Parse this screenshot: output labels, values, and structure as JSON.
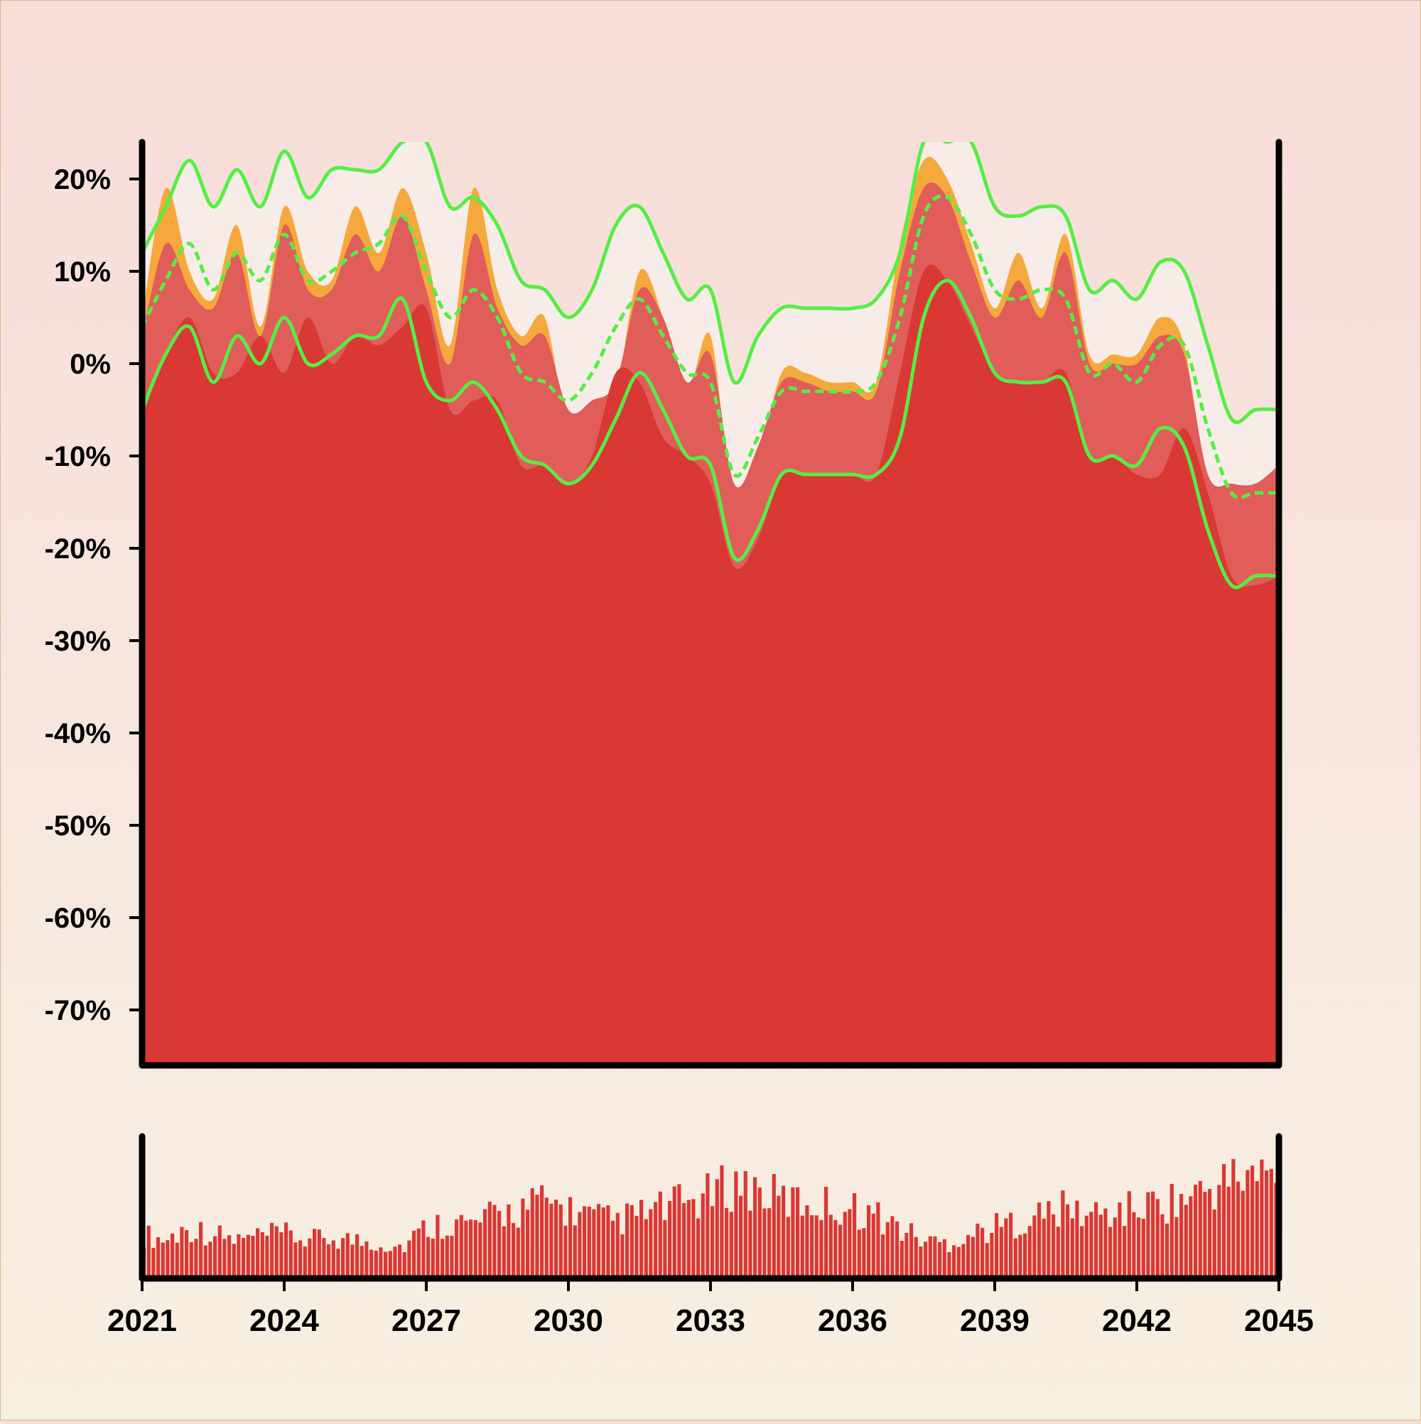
{
  "colors": {
    "background_top": "#f7dcd8",
    "background_bottom": "#f7efe0",
    "price_area": "#d93834",
    "mid_band": "#e05d5a",
    "high_area": "#f5a93c",
    "envelope_fill": "#f7ece8",
    "envelope_line": "#55ee44",
    "volume": "#d93834",
    "axis": "#000000"
  },
  "chart_data": [
    {
      "type": "area",
      "panel": "price",
      "y_unit": "%",
      "ylim": [
        -76,
        24
      ],
      "y_ticks": [
        20,
        10,
        0,
        -10,
        -20,
        -30,
        -40,
        -50,
        -60,
        -70
      ],
      "y_tick_labels": [
        "20%",
        "10%",
        "0%",
        "-10%",
        "-20%",
        "-30%",
        "-40%",
        "-50%",
        "-60%",
        "-70%"
      ],
      "grid": false,
      "legend": "none",
      "x": [
        2021.0,
        2021.5,
        2022.0,
        2022.5,
        2023.0,
        2023.5,
        2024.0,
        2024.5,
        2025.0,
        2025.5,
        2026.0,
        2026.5,
        2027.0,
        2027.5,
        2028.0,
        2028.5,
        2029.0,
        2029.5,
        2030.0,
        2030.5,
        2031.0,
        2031.5,
        2032.0,
        2032.5,
        2033.0,
        2033.5,
        2034.0,
        2034.5,
        2035.0,
        2035.5,
        2036.0,
        2036.5,
        2037.0,
        2037.5,
        2038.0,
        2038.5,
        2039.0,
        2039.5,
        2040.0,
        2040.5,
        2041.0,
        2041.5,
        2042.0,
        2042.5,
        2043.0,
        2043.5,
        2044.0,
        2044.5,
        2045.0
      ],
      "series": [
        {
          "role": "high",
          "values": [
            5,
            19,
            10,
            7,
            15,
            4,
            17,
            10,
            9,
            17,
            12,
            19,
            12,
            2,
            19,
            8,
            3,
            5,
            -7,
            -5,
            -3,
            10,
            5,
            -3,
            3,
            -16,
            -11,
            -1,
            -1,
            -2,
            -2,
            -2,
            13,
            22,
            20,
            13,
            6,
            12,
            6,
            14,
            1,
            1,
            1,
            5,
            2,
            -14,
            -15,
            -15,
            -12
          ]
        },
        {
          "role": "mid",
          "values": [
            3,
            13,
            8,
            6,
            12,
            3,
            15,
            8,
            8,
            14,
            10,
            16,
            8,
            0,
            14,
            6,
            2,
            3,
            -5,
            -4,
            -2,
            8,
            5,
            -2,
            1,
            -13,
            -9,
            -2,
            -2,
            -3,
            -3,
            -3,
            10,
            19,
            18,
            11,
            5,
            9,
            5,
            12,
            0,
            0,
            0,
            3,
            1,
            -12,
            -13,
            -13,
            -11
          ]
        },
        {
          "role": "close",
          "values": [
            -6,
            1,
            5,
            -1,
            -1,
            3,
            -1,
            5,
            0,
            3,
            2,
            4,
            6,
            -5,
            -4,
            -4,
            -11,
            -11,
            -13,
            -10,
            -1,
            -2,
            -8,
            -10,
            -13,
            -22,
            -19,
            -12,
            -12,
            -12,
            -12,
            -12,
            -1,
            10,
            9,
            4,
            -1,
            -2,
            -2,
            -1,
            -10,
            -10,
            -12,
            -12,
            -7,
            -14,
            -23,
            -24,
            -23
          ]
        },
        {
          "role": "envelope_upper",
          "values": [
            12,
            17,
            22,
            17,
            21,
            17,
            23,
            18,
            21,
            21,
            21,
            24,
            24,
            17,
            18,
            15,
            9,
            8,
            5,
            8,
            15,
            17,
            12,
            7,
            8,
            -2,
            3,
            6,
            6,
            6,
            6,
            7,
            12,
            24,
            24,
            24,
            17,
            16,
            17,
            16,
            8,
            9,
            7,
            11,
            10,
            2,
            -6,
            -5,
            -5
          ]
        },
        {
          "role": "envelope_middle",
          "values": [
            4,
            9,
            13,
            8,
            12,
            9,
            14,
            9,
            10,
            12,
            13,
            16,
            10,
            5,
            8,
            5,
            -1,
            -2,
            -4,
            -1,
            4,
            7,
            3,
            -1,
            -2,
            -12,
            -8,
            -3,
            -3,
            -3,
            -3,
            -2,
            5,
            16,
            18,
            14,
            8,
            7,
            8,
            7,
            -1,
            0,
            -2,
            2,
            2,
            -7,
            -14,
            -14,
            -14
          ]
        },
        {
          "role": "envelope_lower",
          "values": [
            -5,
            1,
            4,
            -2,
            3,
            0,
            5,
            0,
            1,
            3,
            3,
            7,
            -2,
            -4,
            -2,
            -5,
            -10,
            -11,
            -13,
            -11,
            -6,
            -1,
            -5,
            -10,
            -11,
            -21,
            -18,
            -12,
            -12,
            -12,
            -12,
            -12,
            -8,
            5,
            9,
            5,
            -1,
            -2,
            -2,
            -2,
            -10,
            -10,
            -11,
            -7,
            -9,
            -18,
            -24,
            -23,
            -23
          ]
        }
      ]
    },
    {
      "type": "bar",
      "panel": "volume",
      "x_ticks": [
        2021,
        2024,
        2027,
        2030,
        2033,
        2036,
        2039,
        2042,
        2045
      ],
      "x_tick_labels": [
        "2021",
        "2024",
        "2027",
        "2030",
        "2033",
        "2036",
        "2039",
        "2042",
        "2045"
      ],
      "volume_max": 100,
      "x": [
        2021.0,
        2021.5,
        2022.0,
        2022.5,
        2023.0,
        2023.5,
        2024.0,
        2024.5,
        2025.0,
        2025.5,
        2026.0,
        2026.5,
        2027.0,
        2027.5,
        2028.0,
        2028.5,
        2029.0,
        2029.5,
        2030.0,
        2030.5,
        2031.0,
        2031.5,
        2032.0,
        2032.5,
        2033.0,
        2033.5,
        2034.0,
        2034.5,
        2035.0,
        2035.5,
        2036.0,
        2036.5,
        2037.0,
        2037.5,
        2038.0,
        2038.5,
        2039.0,
        2039.5,
        2040.0,
        2040.5,
        2041.0,
        2041.5,
        2042.0,
        2042.5,
        2043.0,
        2043.5,
        2044.0,
        2044.5,
        2045.0
      ],
      "values": [
        35,
        30,
        40,
        35,
        30,
        33,
        35,
        30,
        32,
        30,
        28,
        25,
        40,
        45,
        42,
        50,
        55,
        60,
        55,
        48,
        45,
        50,
        55,
        60,
        65,
        75,
        70,
        62,
        60,
        58,
        55,
        50,
        40,
        30,
        28,
        35,
        40,
        45,
        50,
        55,
        50,
        52,
        55,
        60,
        62,
        70,
        78,
        82,
        80
      ]
    }
  ]
}
